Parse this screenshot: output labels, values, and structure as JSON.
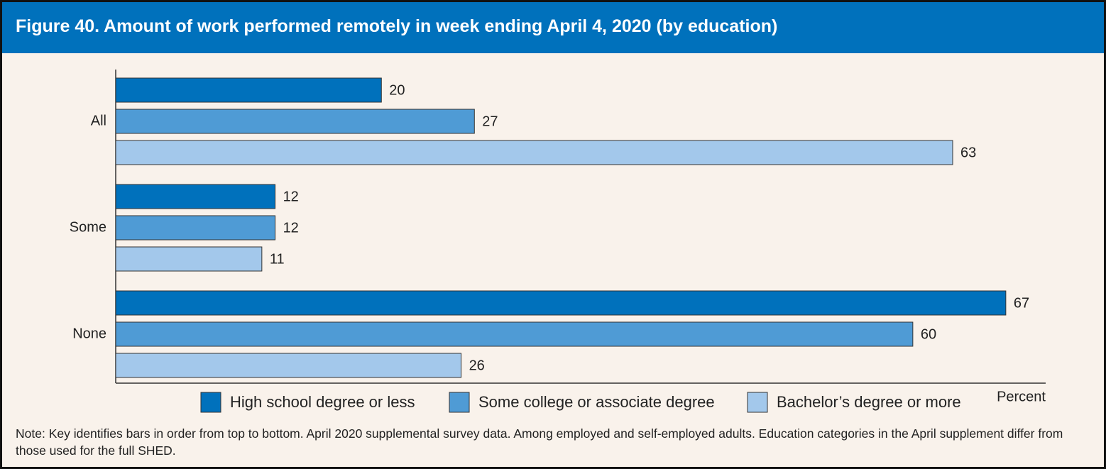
{
  "chart_data": {
    "type": "hbar",
    "title": "Figure 40. Amount of work performed remotely in week ending April 4, 2020 (by education)",
    "categories": [
      "All",
      "Some",
      "None"
    ],
    "series": [
      {
        "name": "High school degree or less",
        "color": "#0071bc",
        "values": [
          20,
          12,
          67
        ]
      },
      {
        "name": "Some college or associate degree",
        "color": "#4f9bd5",
        "values": [
          27,
          12,
          60
        ]
      },
      {
        "name": "Bachelor’s degree or more",
        "color": "#a3c8eb",
        "values": [
          63,
          11,
          26
        ]
      }
    ],
    "xlim": [
      0,
      70
    ],
    "x_label": "Percent",
    "note": "Note: Key identifies bars in order from top to bottom. April 2020 supplemental survey data. Among employed and self-employed adults. Education categories in the April supplement differ from those used for the full SHED."
  }
}
